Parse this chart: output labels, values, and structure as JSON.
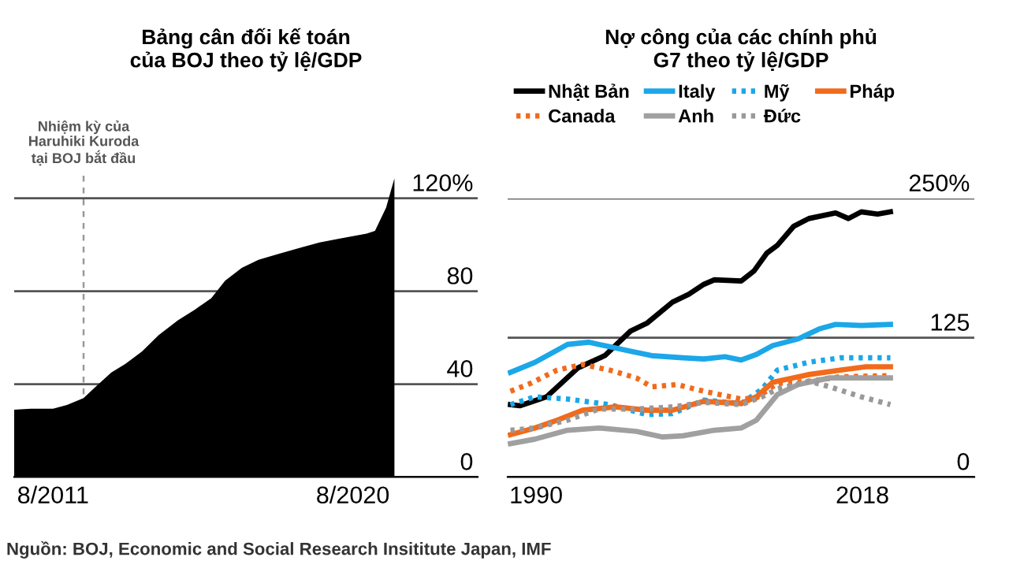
{
  "chart_data": [
    {
      "type": "area",
      "title": "Bảng cân đối kế toán\ncủa BOJ theo tỷ lệ/GDP",
      "color": "#000000",
      "x": [
        "2010-06",
        "2010-12",
        "2011-08",
        "2012-01",
        "2012-07",
        "2012-11",
        "2013-05",
        "2013-10",
        "2014-04",
        "2014-10",
        "2015-05",
        "2015-11",
        "2016-05",
        "2016-10",
        "2017-04",
        "2017-10",
        "2018-05",
        "2019-01",
        "2019-08",
        "2020-03",
        "2021-01",
        "2021-04",
        "2021-08",
        "2021-11"
      ],
      "values": [
        29,
        29.4,
        29.4,
        31,
        34,
        38.5,
        45,
        48.7,
        54,
        61,
        67.5,
        72,
        77,
        84.5,
        90,
        93.5,
        96,
        98.7,
        101,
        102.6,
        104.8,
        106,
        116,
        128.6
      ],
      "xlim": [
        "2010-06",
        "2024-05"
      ],
      "ylim": [
        0,
        130
      ],
      "xticks": [
        {
          "value": "2011-08",
          "label": "8/2011"
        },
        {
          "value": "2020-08",
          "label": "8/2020"
        }
      ],
      "yticks": [
        0,
        40,
        80,
        {
          "value": 120,
          "label": "120%"
        }
      ],
      "grid": "y",
      "ref_lines": [
        {
          "axis": "x",
          "value": "2012-07",
          "label": "Nhiệm kỳ của\nHaruhiki Kuroda\ntại BOJ bắt đầu",
          "color": "#999999",
          "line_style": "dashed"
        }
      ],
      "annotations": [
        "Nguồn: BOJ, Economic and Social Research Insititute Japan, IMF"
      ]
    },
    {
      "type": "line",
      "title": "Nợ công của các chính phủ\nG7 theo tỷ lệ/GDP",
      "legend": "top left",
      "grid": "y",
      "xlim": [
        1987.56,
        2027.6
      ],
      "ylim": [
        0,
        250
      ],
      "xticks": [
        1990,
        2018
      ],
      "yticks": [
        0,
        125,
        {
          "value": 250,
          "label": "250%"
        }
      ],
      "series": [
        {
          "name": "Nhật Bản",
          "color": "#000000",
          "line_style": "solid",
          "x": [
            1987.8,
            1988.6,
            1990.9,
            1993.6,
            1995.9,
            1998.1,
            1999.5,
            2001.7,
            2003.1,
            2004.4,
            2005.3,
            2007.6,
            2008.7,
            2009.8,
            2010.7,
            2012.1,
            2013.4,
            2015.7,
            2016.8,
            2017.9,
            2019.3,
            2020.4
          ],
          "values": [
            65,
            64,
            72,
            98,
            109,
            131,
            138,
            157,
            164,
            173,
            177,
            176,
            185,
            201,
            208,
            225,
            232,
            237,
            232,
            238,
            236,
            238
          ]
        },
        {
          "name": "Italy",
          "color": "#1ba7e8",
          "line_style": "solid",
          "x": [
            1987.8,
            1989.9,
            1992.7,
            1994.5,
            1996.3,
            1998.1,
            1999.9,
            2002.6,
            2004.4,
            2006.2,
            2007.6,
            2008.9,
            2010.3,
            2012.5,
            2014.3,
            2015.7,
            2017.9,
            2020.4
          ],
          "values": [
            94,
            103,
            119,
            121,
            117,
            113,
            109,
            107,
            106,
            108,
            105,
            110,
            118,
            124,
            133,
            137,
            136,
            137
          ]
        },
        {
          "name": "Mỹ",
          "color": "#1ba7e8",
          "line_style": "dotted",
          "x": [
            1987.8,
            1989.9,
            1992.7,
            1996.3,
            1999.5,
            2001.7,
            2004.4,
            2007.6,
            2009.4,
            2010.7,
            2013.4,
            2016.1,
            2020.4
          ],
          "values": [
            65,
            72,
            70,
            65,
            56,
            57,
            69,
            66,
            79,
            96,
            103,
            107,
            107
          ]
        },
        {
          "name": "Pháp",
          "color": "#f26a1b",
          "line_style": "solid",
          "x": [
            1987.8,
            1989.9,
            1991.8,
            1994.0,
            1996.8,
            1999.5,
            2001.7,
            2004.4,
            2007.6,
            2008.9,
            2010.3,
            2013.4,
            2016.1,
            2018.3,
            2020.4
          ],
          "values": [
            38,
            44,
            51,
            60,
            63,
            60,
            60,
            68,
            66,
            72,
            85,
            92,
            96,
            99,
            99
          ]
        },
        {
          "name": "Canada",
          "color": "#f26a1b",
          "line_style": "dotted",
          "x": [
            1987.8,
            1989.5,
            1991.8,
            1994.0,
            1996.3,
            1998.6,
            1999.9,
            2002.1,
            2004.4,
            2007.6,
            2008.9,
            2010.7,
            2013.4,
            2016.1,
            2020.4
          ],
          "values": [
            77,
            84,
            96,
            101,
            96,
            89,
            81,
            83,
            77,
            70,
            71,
            84,
            86,
            90,
            91
          ]
        },
        {
          "name": "Anh",
          "color": "#a0a0a0",
          "line_style": "solid",
          "x": [
            1987.8,
            1989.9,
            1992.7,
            1995.4,
            1998.6,
            2000.8,
            2002.6,
            2005.3,
            2007.6,
            2008.9,
            2010.7,
            2012.5,
            2015.2,
            2020.4
          ],
          "values": [
            30,
            34,
            42,
            44,
            41,
            36,
            37,
            42,
            44,
            51,
            74,
            83,
            89,
            89
          ]
        },
        {
          "name": "Đức",
          "color": "#999999",
          "line_style": "dotted",
          "x": [
            1987.8,
            1989.9,
            1992.7,
            1995.4,
            1998.6,
            2001.7,
            2004.4,
            2007.6,
            2009.4,
            2010.7,
            2013.4,
            2015.2,
            2017.9,
            2020.4
          ],
          "values": [
            42,
            44,
            51,
            61,
            61,
            63,
            67,
            65,
            72,
            79,
            86,
            81,
            72,
            65
          ]
        }
      ]
    }
  ]
}
